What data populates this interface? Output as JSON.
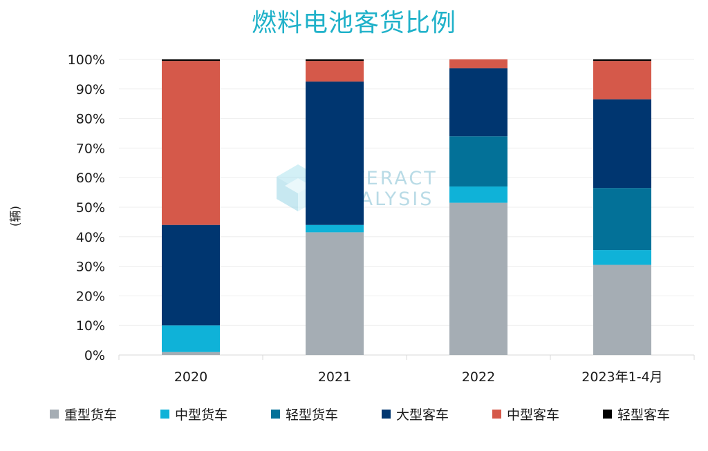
{
  "chart_data": {
    "type": "bar",
    "stacked": true,
    "title": "燃料电池客货比例",
    "ylabel": "(辆)",
    "xlabel": "",
    "ylim": [
      0,
      100
    ],
    "y_ticks": [
      "0%",
      "10%",
      "20%",
      "30%",
      "40%",
      "50%",
      "60%",
      "70%",
      "80%",
      "90%",
      "100%"
    ],
    "grid": true,
    "legend_position": "bottom",
    "categories": [
      "2020",
      "2021",
      "2022",
      "2023年1-4月"
    ],
    "series": [
      {
        "name": "重型货车",
        "color": "#a5adb4",
        "values": [
          1,
          41.5,
          51.5,
          30.5
        ]
      },
      {
        "name": "中型货车",
        "color": "#0fb2d8",
        "values": [
          9,
          2.5,
          5.5,
          5
        ]
      },
      {
        "name": "轻型货车",
        "color": "#037198",
        "values": [
          0,
          0,
          17,
          21
        ]
      },
      {
        "name": "大型客车",
        "color": "#003670",
        "values": [
          34,
          48.5,
          23,
          30
        ]
      },
      {
        "name": "中型客车",
        "color": "#d5594a",
        "values": [
          55.5,
          7,
          3,
          13
        ]
      },
      {
        "name": "轻型客车",
        "color": "#000000",
        "values": [
          0.5,
          0.5,
          0,
          0.5
        ]
      }
    ]
  },
  "watermark": {
    "line1": "INTERACT",
    "line2": "ANALYSIS"
  }
}
